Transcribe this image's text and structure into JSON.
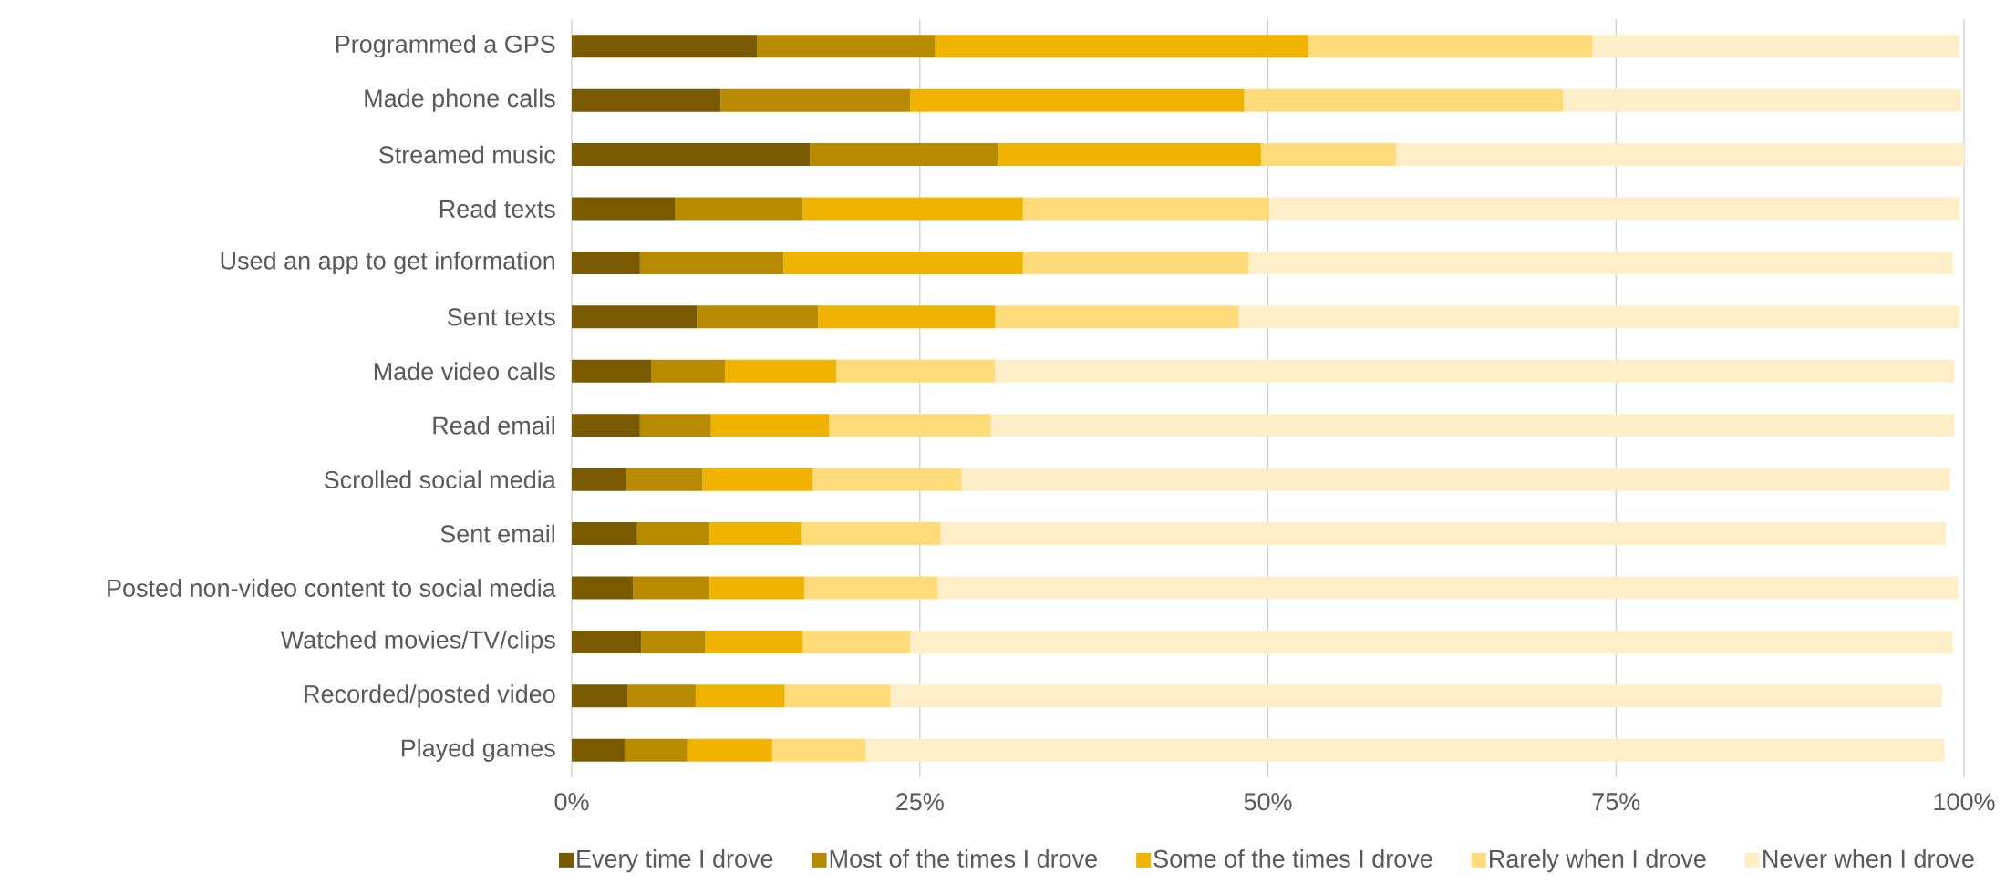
{
  "chart_data": {
    "type": "bar",
    "orientation": "horizontal",
    "stacked": true,
    "categories": [
      "Programmed a GPS",
      "Made phone calls",
      "Streamed music",
      "Read texts",
      "Used an app to get information",
      "Sent texts",
      "Made video calls",
      "Read email",
      "Scrolled social media",
      "Sent email",
      "Posted non-video content to social media",
      "Watched movies/TV/clips",
      "Recorded/posted video",
      "Played games"
    ],
    "series": [
      {
        "name": "Every time I drove",
        "color": "#7a5a00",
        "values": [
          13.3,
          10.7,
          17.1,
          7.4,
          4.9,
          9.0,
          5.7,
          4.9,
          3.9,
          4.7,
          4.4,
          5.0,
          4.0,
          3.8
        ]
      },
      {
        "name": "Most of the times I drove",
        "color": "#b88a00",
        "values": [
          12.8,
          13.6,
          13.5,
          9.2,
          10.3,
          8.7,
          5.3,
          5.1,
          5.5,
          5.2,
          5.5,
          4.6,
          4.9,
          4.5
        ]
      },
      {
        "name": "Some of the times I drove",
        "color": "#f0b400",
        "values": [
          26.8,
          24.0,
          18.9,
          15.8,
          17.2,
          12.7,
          8.0,
          8.5,
          7.9,
          6.6,
          6.8,
          7.0,
          6.4,
          6.1
        ]
      },
      {
        "name": "Rarely when I drove",
        "color": "#ffdb7a",
        "values": [
          20.4,
          22.9,
          9.7,
          17.7,
          16.2,
          17.5,
          11.4,
          11.6,
          10.7,
          10.0,
          9.6,
          7.7,
          7.6,
          6.7
        ]
      },
      {
        "name": "Never when I drove",
        "color": "#ffefc8",
        "values": [
          26.4,
          28.6,
          40.8,
          49.6,
          50.6,
          51.8,
          68.9,
          69.2,
          71.0,
          72.2,
          73.3,
          74.9,
          75.5,
          77.5
        ]
      }
    ],
    "xlim": [
      0,
      100
    ],
    "xticks": [
      {
        "value": 0,
        "label": "0%"
      },
      {
        "value": 25,
        "label": "25%"
      },
      {
        "value": 50,
        "label": "50%"
      },
      {
        "value": 75,
        "label": "75%"
      },
      {
        "value": 100,
        "label": "100%"
      }
    ],
    "grid": "x",
    "legend": "bottom"
  }
}
